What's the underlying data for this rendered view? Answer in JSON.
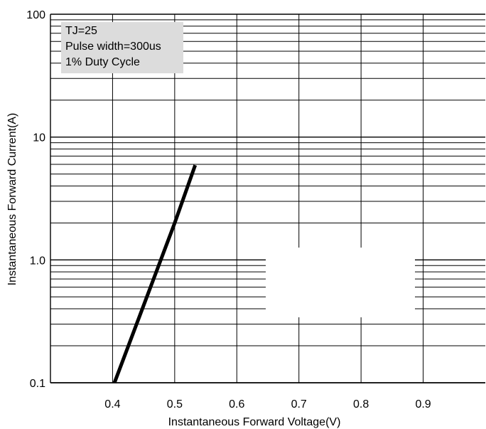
{
  "chart_data": {
    "type": "line",
    "xlabel": "Instantaneous Forward Voltage(V)",
    "ylabel": "Instantaneous Forward Current(A)",
    "x_scale": "linear",
    "y_scale": "log",
    "xlim": [
      0.3,
      1.0
    ],
    "ylim": [
      0.1,
      100
    ],
    "x_ticks": [
      0.4,
      0.5,
      0.6,
      0.7,
      0.8,
      0.9
    ],
    "x_tick_labels": [
      "0.4",
      "0.5",
      "0.6",
      "0.7",
      "0.8",
      "0.9"
    ],
    "y_ticks": [
      0.1,
      1.0,
      10,
      100
    ],
    "y_tick_labels": [
      "0.1",
      "1.0",
      "10",
      "100"
    ],
    "grid": true,
    "legend_position": "top-left",
    "annotation_lines": [
      "TJ=25",
      "Pulse width=300us",
      "1% Duty Cycle"
    ],
    "series": [
      {
        "x": [
          0.403,
          0.5,
          0.533
        ],
        "y": [
          0.1,
          2.0,
          5.9
        ]
      }
    ],
    "colors": {
      "curve": "#000000",
      "grid": "#000000",
      "annotation_bg": "#dcdcdc"
    }
  }
}
